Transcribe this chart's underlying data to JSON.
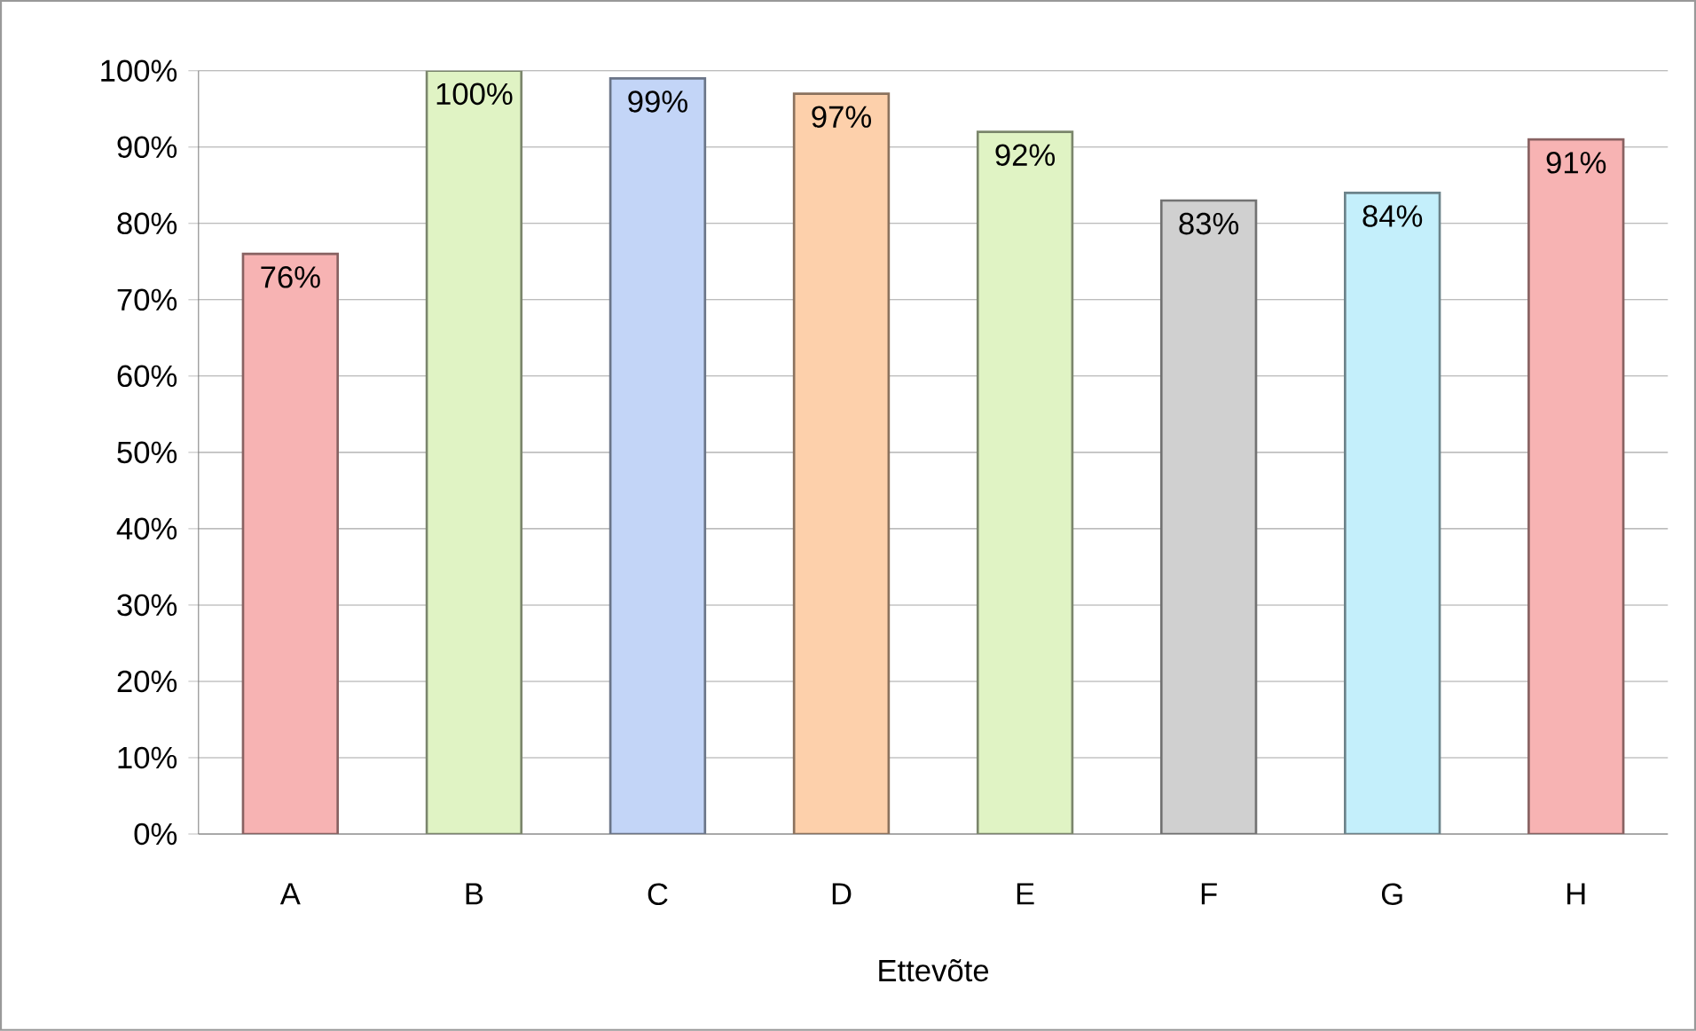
{
  "chart_data": {
    "type": "bar",
    "xlabel": "Ettevõte",
    "categories": [
      "A",
      "B",
      "C",
      "D",
      "E",
      "F",
      "G",
      "H"
    ],
    "values": [
      76,
      100,
      99,
      97,
      92,
      83,
      84,
      91
    ],
    "value_labels": [
      "76%",
      "100%",
      "99%",
      "97%",
      "92%",
      "83%",
      "84%",
      "91%"
    ],
    "colors": [
      "#f7b3b3",
      "#e0f3c4",
      "#c3d5f7",
      "#fdd0ab",
      "#e0f3c4",
      "#d0d0d0",
      "#c4effb",
      "#f7b3b3"
    ],
    "ylim": [
      0,
      100
    ],
    "yticks": [
      {
        "value": 0,
        "label": "0%"
      },
      {
        "value": 10,
        "label": "10%"
      },
      {
        "value": 20,
        "label": "20%"
      },
      {
        "value": 30,
        "label": "30%"
      },
      {
        "value": 40,
        "label": "40%"
      },
      {
        "value": 50,
        "label": "50%"
      },
      {
        "value": 60,
        "label": "60%"
      },
      {
        "value": 70,
        "label": "70%"
      },
      {
        "value": 80,
        "label": "80%"
      },
      {
        "value": 90,
        "label": "90%"
      },
      {
        "value": 100,
        "label": "100%"
      }
    ],
    "grid": "y"
  }
}
